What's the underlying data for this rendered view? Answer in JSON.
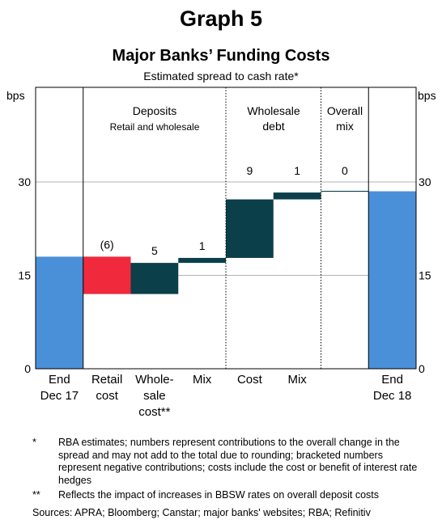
{
  "header": {
    "graph_label": "Graph 5",
    "title": "Major Banks’ Funding Costs",
    "subtitle": "Estimated spread to cash rate*"
  },
  "chart_data": {
    "type": "waterfall",
    "ylabel_left": "bps",
    "ylabel_right": "bps",
    "ylim": [
      0,
      40
    ],
    "yticks": [
      0,
      15,
      30
    ],
    "grid": true,
    "colors": {
      "endpoint": "#4A90D9",
      "decrease": "#F0293C",
      "increase": "#0B3F4A",
      "mix_line": "#0B3F4A"
    },
    "groups": [
      {
        "label": "Deposits",
        "sublabel": "Retail and wholesale"
      },
      {
        "label": "Wholesale",
        "sublabel": "debt"
      },
      {
        "label": "Overall",
        "sublabel": "mix"
      }
    ],
    "bars": [
      {
        "label": [
          "End",
          "Dec 17"
        ],
        "kind": "endpoint",
        "start": 0,
        "end": 18.0,
        "value_label": ""
      },
      {
        "label": [
          "Retail",
          "cost"
        ],
        "kind": "decrease",
        "start": 18.0,
        "end": 12.0,
        "value_label": "(6)"
      },
      {
        "label": [
          "Whole-",
          "sale",
          "cost**"
        ],
        "kind": "increase",
        "start": 12.0,
        "end": 17.0,
        "value_label": "5"
      },
      {
        "label": [
          "Mix"
        ],
        "kind": "increase",
        "start": 17.0,
        "end": 17.8,
        "value_label": "1"
      },
      {
        "label": [
          "Cost"
        ],
        "kind": "increase",
        "start": 17.8,
        "end": 27.2,
        "value_label": "9"
      },
      {
        "label": [
          "Mix"
        ],
        "kind": "increase",
        "start": 27.2,
        "end": 28.3,
        "value_label": "1"
      },
      {
        "label": [
          ""
        ],
        "kind": "flat",
        "start": 28.5,
        "end": 28.5,
        "value_label": "0"
      },
      {
        "label": [
          "End",
          "Dec 18"
        ],
        "kind": "endpoint",
        "start": 0,
        "end": 28.5,
        "value_label": ""
      }
    ]
  },
  "notes": [
    {
      "mark": "*",
      "text": "RBA estimates; numbers represent contributions to the overall change in the spread and may not add to the total due to rounding; bracketed numbers represent negative contributions; costs include the cost or benefit of interest rate hedges"
    },
    {
      "mark": "**",
      "text": "Reflects the impact of increases in BBSW rates on overall deposit costs"
    }
  ],
  "sources": "Sources:   APRA; Bloomberg; Canstar; major banks' websites; RBA; Refinitiv"
}
